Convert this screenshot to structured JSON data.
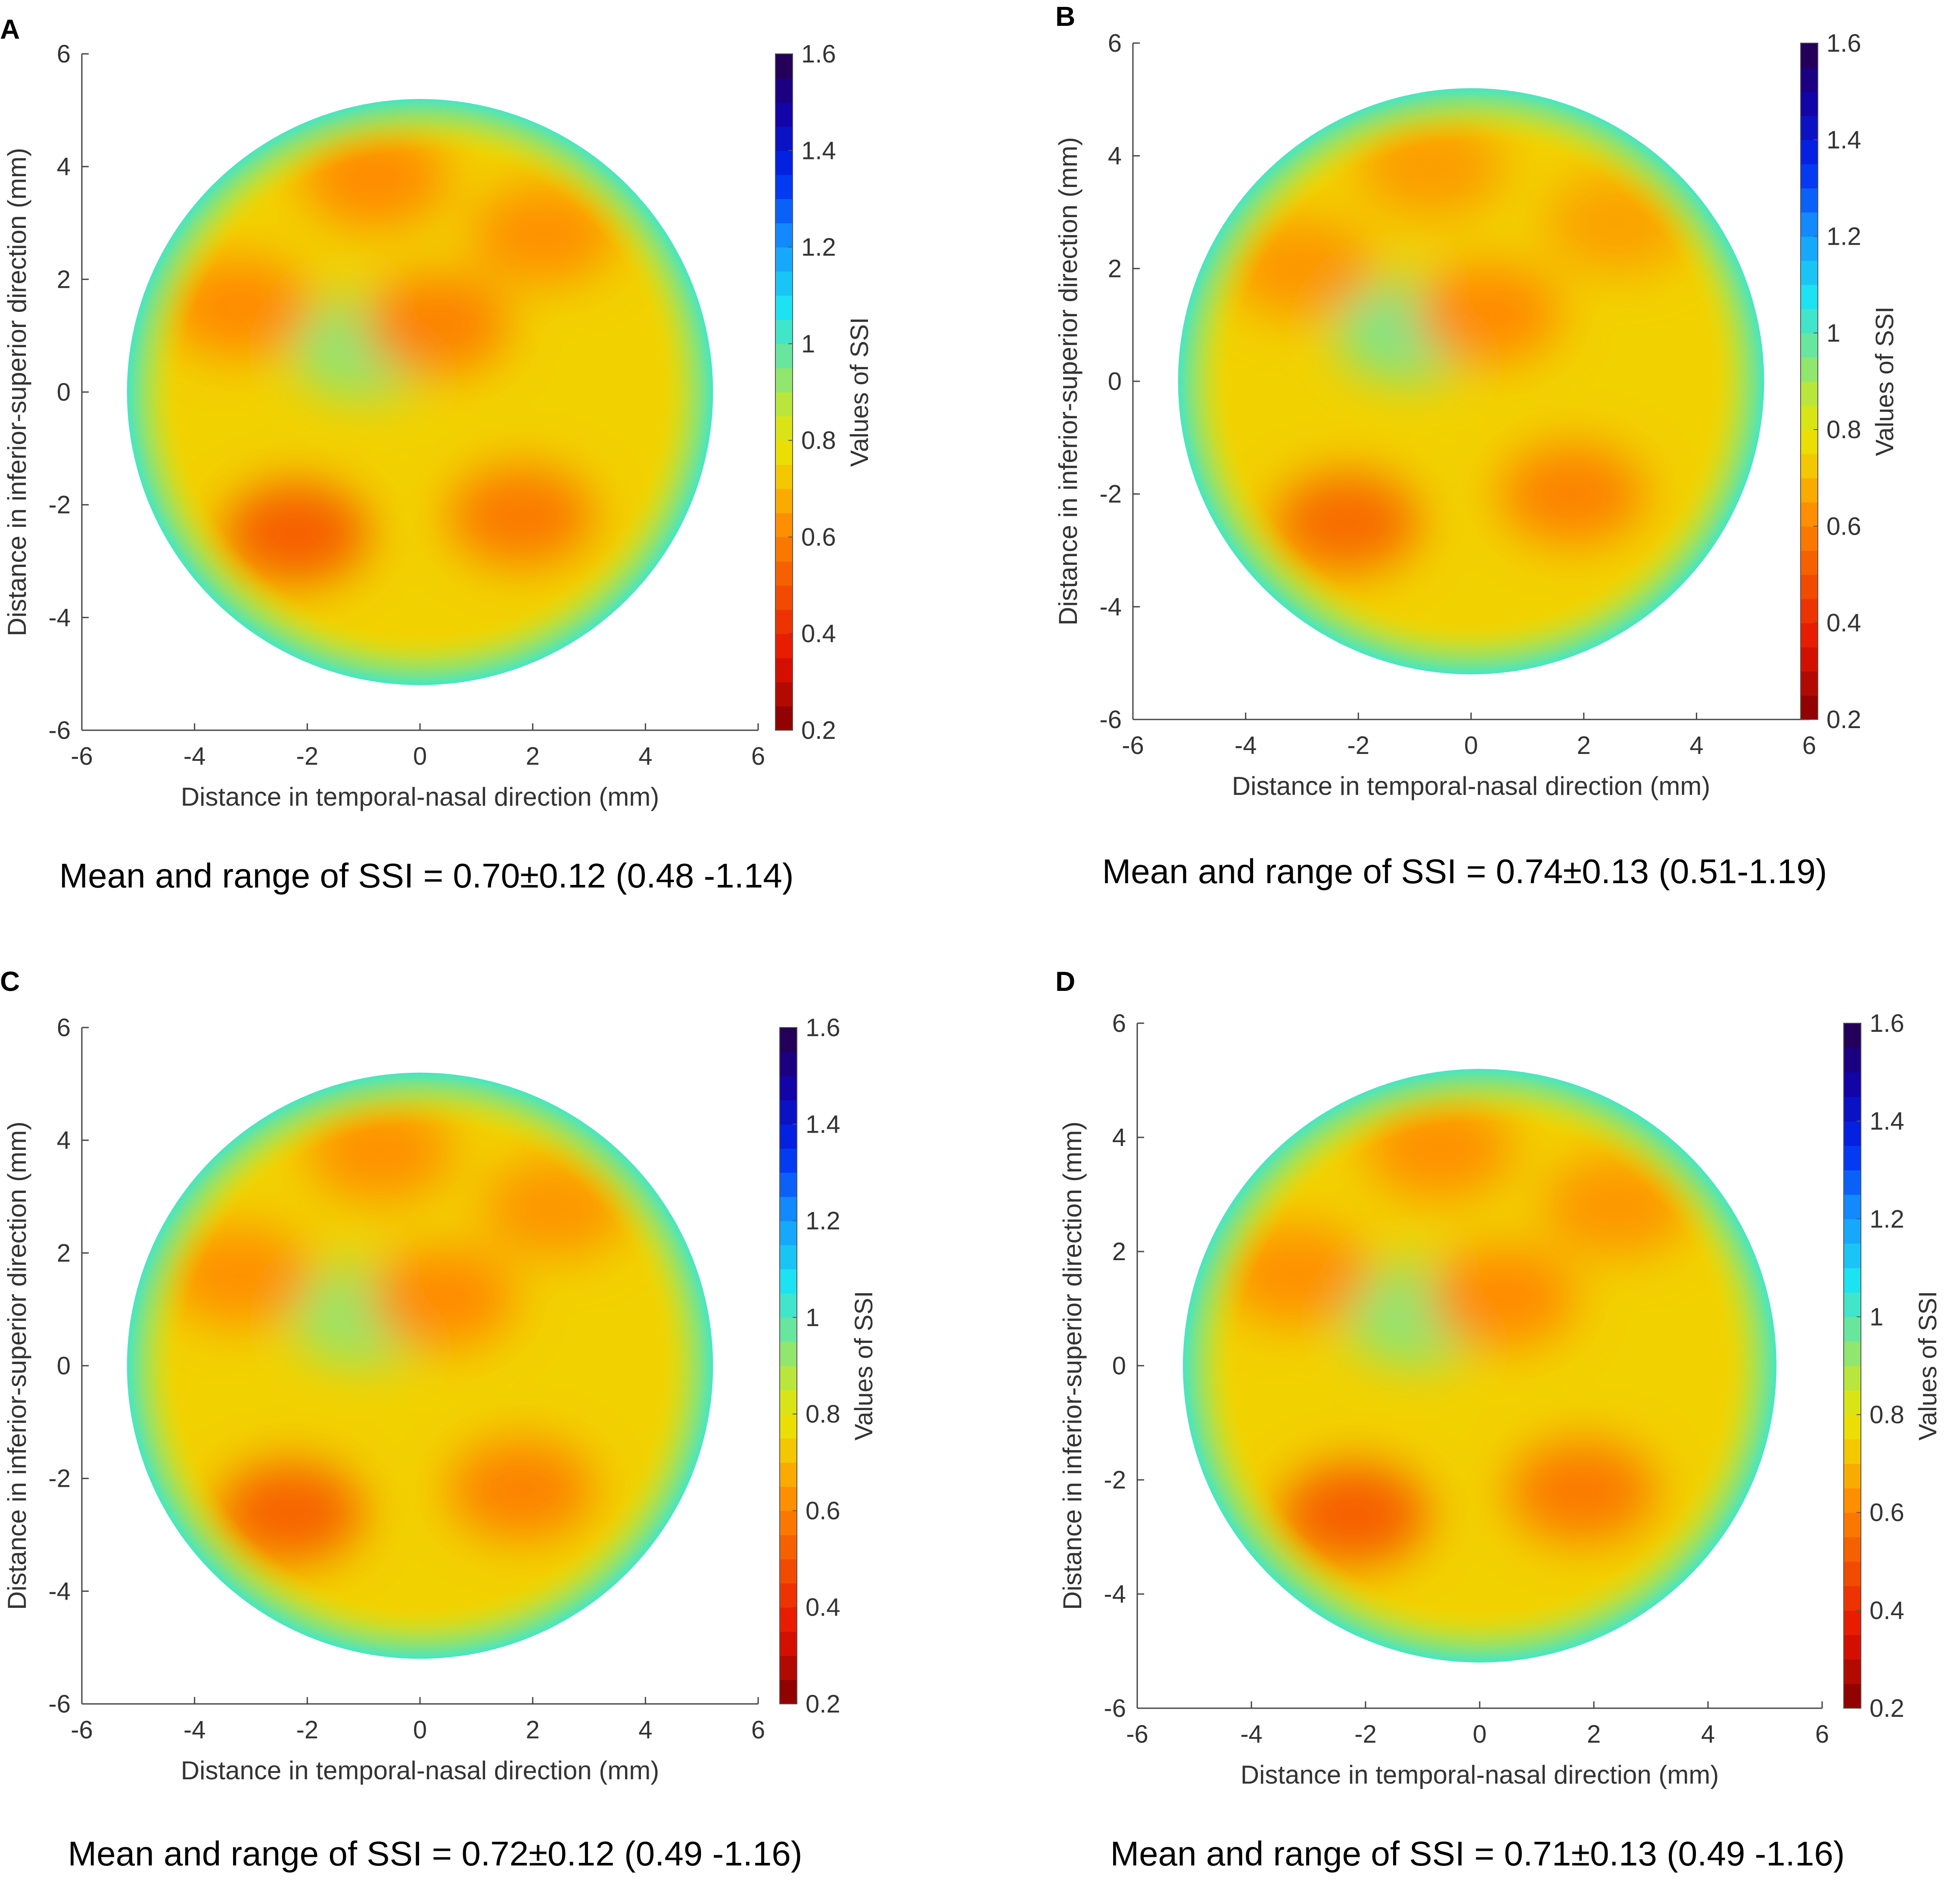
{
  "figure": {
    "panels": [
      "A",
      "B",
      "C",
      "D"
    ]
  },
  "chart_data": [
    {
      "type": "heatmap",
      "panel": "A",
      "xlabel": "Distance in temporal-nasal direction (mm)",
      "ylabel": "Distance in inferior-superior direction (mm)",
      "xlim": [
        -6,
        6
      ],
      "ylim": [
        -6,
        6
      ],
      "xticks": [
        "-6",
        "-4",
        "-2",
        "0",
        "2",
        "4",
        "6"
      ],
      "yticks": [
        "-6",
        "-4",
        "-2",
        "0",
        "2",
        "4",
        "6"
      ],
      "colorbar": {
        "label": "Values of SSI",
        "range": [
          0.2,
          1.6
        ],
        "ticks": [
          "0.2",
          "0.4",
          "0.6",
          "0.8",
          "1",
          "1.2",
          "1.4",
          "1.6"
        ]
      },
      "map_radius_mm": 5.2,
      "features": [
        {
          "x": -2.2,
          "y": -2.5,
          "value": 0.52
        },
        {
          "x": 1.8,
          "y": -2.2,
          "value": 0.58
        },
        {
          "x": -1.0,
          "y": 0.8,
          "value": 0.93
        },
        {
          "x": 0.3,
          "y": 1.2,
          "value": 0.6
        },
        {
          "x": 2.2,
          "y": 2.8,
          "value": 0.63
        },
        {
          "x": -0.8,
          "y": 3.8,
          "value": 0.62
        },
        {
          "x": -3.2,
          "y": 1.5,
          "value": 0.62
        }
      ],
      "caption": "Mean and range of SSI = 0.70±0.12 (0.48 -1.14)"
    },
    {
      "type": "heatmap",
      "panel": "B",
      "xlabel": "Distance in temporal-nasal direction (mm)",
      "ylabel": "Distance in inferior-superior direction (mm)",
      "xlim": [
        -6,
        6
      ],
      "ylim": [
        -6,
        6
      ],
      "xticks": [
        "-6",
        "-4",
        "-2",
        "0",
        "2",
        "4",
        "6"
      ],
      "yticks": [
        "-6",
        "-4",
        "-2",
        "0",
        "2",
        "4",
        "6"
      ],
      "colorbar": {
        "label": "Values of SSI",
        "range": [
          0.2,
          1.6
        ],
        "ticks": [
          "0.2",
          "0.4",
          "0.6",
          "0.8",
          "1",
          "1.2",
          "1.4",
          "1.6"
        ]
      },
      "map_radius_mm": 5.2,
      "features": [
        {
          "x": -2.2,
          "y": -2.5,
          "value": 0.55
        },
        {
          "x": 1.8,
          "y": -2.0,
          "value": 0.6
        },
        {
          "x": -1.1,
          "y": 0.9,
          "value": 0.95
        },
        {
          "x": 0.3,
          "y": 1.2,
          "value": 0.62
        },
        {
          "x": 2.6,
          "y": 2.8,
          "value": 0.66
        },
        {
          "x": -0.7,
          "y": 3.8,
          "value": 0.65
        },
        {
          "x": -3.0,
          "y": 2.0,
          "value": 0.64
        }
      ],
      "caption": "Mean and range of SSI = 0.74±0.13 (0.51-1.19)"
    },
    {
      "type": "heatmap",
      "panel": "C",
      "xlabel": "Distance in temporal-nasal direction (mm)",
      "ylabel": "Distance in inferior-superior direction (mm)",
      "xlim": [
        -6,
        6
      ],
      "ylim": [
        -6,
        6
      ],
      "xticks": [
        "-6",
        "-4",
        "-2",
        "0",
        "2",
        "4",
        "6"
      ],
      "yticks": [
        "-6",
        "-4",
        "-2",
        "0",
        "2",
        "4",
        "6"
      ],
      "colorbar": {
        "label": "Values of SSI",
        "range": [
          0.2,
          1.6
        ],
        "ticks": [
          "0.2",
          "0.4",
          "0.6",
          "0.8",
          "1",
          "1.2",
          "1.4",
          "1.6"
        ]
      },
      "map_radius_mm": 5.2,
      "features": [
        {
          "x": -2.3,
          "y": -2.6,
          "value": 0.53
        },
        {
          "x": 1.8,
          "y": -2.2,
          "value": 0.6
        },
        {
          "x": -1.0,
          "y": 0.9,
          "value": 0.92
        },
        {
          "x": 0.4,
          "y": 1.2,
          "value": 0.62
        },
        {
          "x": 2.4,
          "y": 2.8,
          "value": 0.64
        },
        {
          "x": -0.7,
          "y": 3.8,
          "value": 0.63
        },
        {
          "x": -3.2,
          "y": 1.6,
          "value": 0.63
        }
      ],
      "caption": "Mean and range of SSI = 0.72±0.12 (0.49 -1.16)"
    },
    {
      "type": "heatmap",
      "panel": "D",
      "xlabel": "Distance in temporal-nasal direction (mm)",
      "ylabel": "Distance in inferior-superior direction (mm)",
      "xlim": [
        -6,
        6
      ],
      "ylim": [
        -6,
        6
      ],
      "xticks": [
        "-6",
        "-4",
        "-2",
        "0",
        "2",
        "4",
        "6"
      ],
      "yticks": [
        "-6",
        "-4",
        "-2",
        "0",
        "2",
        "4",
        "6"
      ],
      "colorbar": {
        "label": "Values of SSI",
        "range": [
          0.2,
          1.6
        ],
        "ticks": [
          "0.2",
          "0.4",
          "0.6",
          "0.8",
          "1",
          "1.2",
          "1.4",
          "1.6"
        ]
      },
      "map_radius_mm": 5.2,
      "features": [
        {
          "x": -2.2,
          "y": -2.6,
          "value": 0.52
        },
        {
          "x": 1.8,
          "y": -2.2,
          "value": 0.58
        },
        {
          "x": -1.1,
          "y": 0.9,
          "value": 0.93
        },
        {
          "x": 0.4,
          "y": 1.2,
          "value": 0.62
        },
        {
          "x": 2.4,
          "y": 2.8,
          "value": 0.64
        },
        {
          "x": -0.7,
          "y": 3.8,
          "value": 0.63
        },
        {
          "x": -3.2,
          "y": 1.6,
          "value": 0.63
        }
      ],
      "caption": "Mean and range of SSI = 0.71±0.13 (0.49 -1.16)"
    }
  ]
}
